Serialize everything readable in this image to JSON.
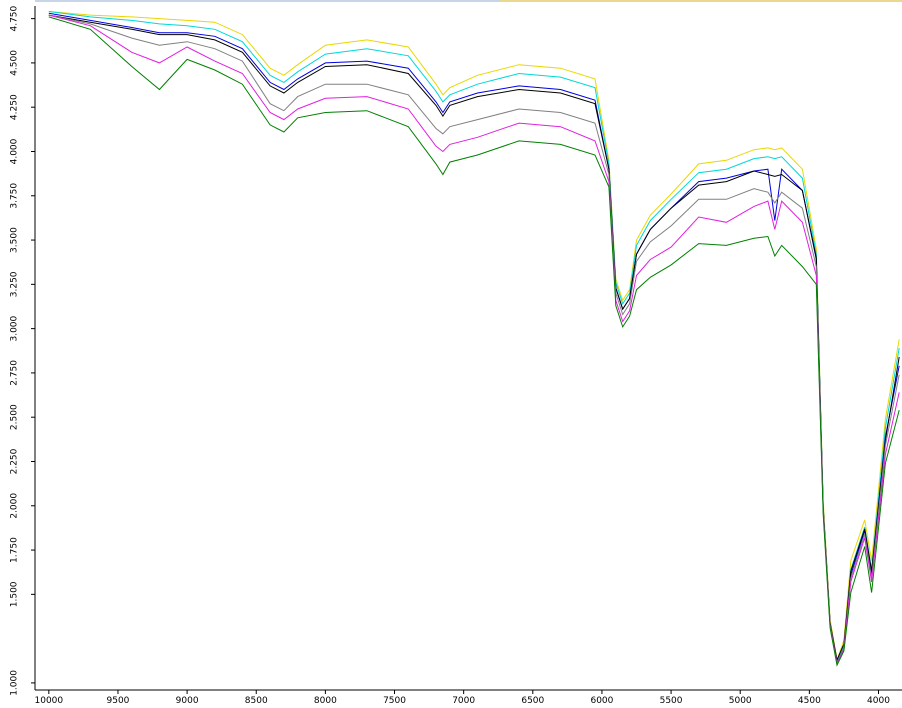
{
  "chart_data": {
    "type": "line",
    "x": [
      10000,
      9700,
      9400,
      9200,
      9000,
      8800,
      8600,
      8400,
      8300,
      8200,
      8000,
      7700,
      7400,
      7200,
      7150,
      7100,
      6900,
      6600,
      6300,
      6050,
      5950,
      5900,
      5850,
      5800,
      5750,
      5650,
      5500,
      5300,
      5100,
      4900,
      4800,
      4750,
      4700,
      4550,
      4450,
      4400,
      4350,
      4300,
      4250,
      4200,
      4100,
      4050,
      3950,
      3850
    ],
    "xlim": [
      10100,
      3830
    ],
    "xticks": [
      10000,
      9500,
      9000,
      8500,
      8000,
      7500,
      7000,
      6500,
      6000,
      5500,
      5000,
      4500,
      4000
    ],
    "ylim": [
      0.96,
      4.81
    ],
    "yticks": [
      {
        "value": 4.75,
        "label": "4.750"
      },
      {
        "value": 4.5,
        "label": "4.500"
      },
      {
        "value": 4.25,
        "label": "4.250"
      },
      {
        "value": 4.0,
        "label": "4.000"
      },
      {
        "value": 3.75,
        "label": "3.750"
      },
      {
        "value": 3.5,
        "label": "3.500"
      },
      {
        "value": 3.25,
        "label": "3.250"
      },
      {
        "value": 3.0,
        "label": "3.000"
      },
      {
        "value": 2.75,
        "label": "2.750"
      },
      {
        "value": 2.5,
        "label": "2.500"
      },
      {
        "value": 2.25,
        "label": "2.250"
      },
      {
        "value": 2.0,
        "label": "2.000"
      },
      {
        "value": 1.75,
        "label": "1.750"
      },
      {
        "value": 1.5,
        "label": "1.500"
      },
      {
        "value": 1.0,
        "label": "1.000"
      }
    ],
    "series": [
      {
        "color": "#e8d800",
        "values": [
          4.79,
          4.77,
          4.76,
          4.75,
          4.74,
          4.73,
          4.66,
          4.47,
          4.43,
          4.49,
          4.6,
          4.63,
          4.59,
          4.38,
          4.32,
          4.36,
          4.43,
          4.49,
          4.47,
          4.41,
          3.95,
          3.28,
          3.16,
          3.22,
          3.5,
          3.64,
          3.76,
          3.93,
          3.95,
          4.01,
          4.02,
          4.01,
          4.02,
          3.9,
          3.45,
          2.03,
          1.36,
          1.13,
          1.24,
          1.69,
          1.92,
          1.69,
          2.49,
          2.94
        ]
      },
      {
        "color": "#00d8d8",
        "values": [
          4.79,
          4.76,
          4.74,
          4.72,
          4.71,
          4.69,
          4.62,
          4.43,
          4.39,
          4.45,
          4.55,
          4.58,
          4.54,
          4.34,
          4.28,
          4.32,
          4.38,
          4.44,
          4.42,
          4.36,
          3.93,
          3.26,
          3.14,
          3.2,
          3.47,
          3.61,
          3.73,
          3.88,
          3.9,
          3.96,
          3.97,
          3.96,
          3.97,
          3.85,
          3.42,
          2.0,
          1.34,
          1.12,
          1.21,
          1.64,
          1.88,
          1.64,
          2.44,
          2.89
        ]
      },
      {
        "color": "#0000e0",
        "values": [
          4.78,
          4.74,
          4.7,
          4.67,
          4.67,
          4.65,
          4.58,
          4.39,
          4.35,
          4.41,
          4.5,
          4.51,
          4.47,
          4.28,
          4.22,
          4.28,
          4.33,
          4.37,
          4.35,
          4.29,
          3.9,
          3.23,
          3.11,
          3.17,
          3.42,
          3.56,
          3.68,
          3.83,
          3.85,
          3.89,
          3.9,
          3.61,
          3.9,
          3.78,
          3.39,
          1.98,
          1.33,
          1.11,
          1.2,
          1.61,
          1.86,
          1.61,
          2.39,
          2.79
        ]
      },
      {
        "color": "#000000",
        "values": [
          4.77,
          4.73,
          4.69,
          4.66,
          4.66,
          4.63,
          4.56,
          4.37,
          4.33,
          4.39,
          4.48,
          4.49,
          4.44,
          4.26,
          4.2,
          4.26,
          4.31,
          4.35,
          4.33,
          4.27,
          3.9,
          3.23,
          3.11,
          3.17,
          3.42,
          3.56,
          3.68,
          3.81,
          3.83,
          3.89,
          3.87,
          3.86,
          3.87,
          3.78,
          3.4,
          1.99,
          1.34,
          1.13,
          1.22,
          1.63,
          1.87,
          1.63,
          2.37,
          2.84
        ]
      },
      {
        "color": "#808080",
        "values": [
          4.77,
          4.72,
          4.64,
          4.6,
          4.62,
          4.58,
          4.51,
          4.27,
          4.23,
          4.31,
          4.38,
          4.38,
          4.32,
          4.13,
          4.1,
          4.14,
          4.18,
          4.24,
          4.22,
          4.16,
          3.87,
          3.2,
          3.08,
          3.14,
          3.38,
          3.49,
          3.58,
          3.73,
          3.73,
          3.79,
          3.77,
          3.71,
          3.77,
          3.68,
          3.35,
          1.98,
          1.33,
          1.11,
          1.2,
          1.59,
          1.84,
          1.59,
          2.34,
          2.74
        ]
      },
      {
        "color": "#e020e0",
        "values": [
          4.77,
          4.71,
          4.56,
          4.5,
          4.59,
          4.51,
          4.44,
          4.22,
          4.18,
          4.24,
          4.3,
          4.31,
          4.24,
          4.03,
          4.0,
          4.04,
          4.08,
          4.16,
          4.14,
          4.06,
          3.83,
          3.16,
          3.04,
          3.1,
          3.3,
          3.39,
          3.46,
          3.63,
          3.6,
          3.69,
          3.72,
          3.56,
          3.72,
          3.6,
          3.3,
          1.97,
          1.32,
          1.11,
          1.19,
          1.57,
          1.82,
          1.57,
          2.29,
          2.64
        ]
      },
      {
        "color": "#008000",
        "values": [
          4.76,
          4.69,
          4.48,
          4.35,
          4.52,
          4.46,
          4.38,
          4.15,
          4.11,
          4.19,
          4.22,
          4.23,
          4.14,
          3.93,
          3.87,
          3.94,
          3.98,
          4.06,
          4.04,
          3.98,
          3.8,
          3.13,
          3.01,
          3.07,
          3.22,
          3.29,
          3.36,
          3.48,
          3.47,
          3.51,
          3.52,
          3.41,
          3.47,
          3.35,
          3.25,
          1.95,
          1.31,
          1.1,
          1.18,
          1.51,
          1.77,
          1.51,
          2.24,
          2.54
        ]
      }
    ]
  }
}
